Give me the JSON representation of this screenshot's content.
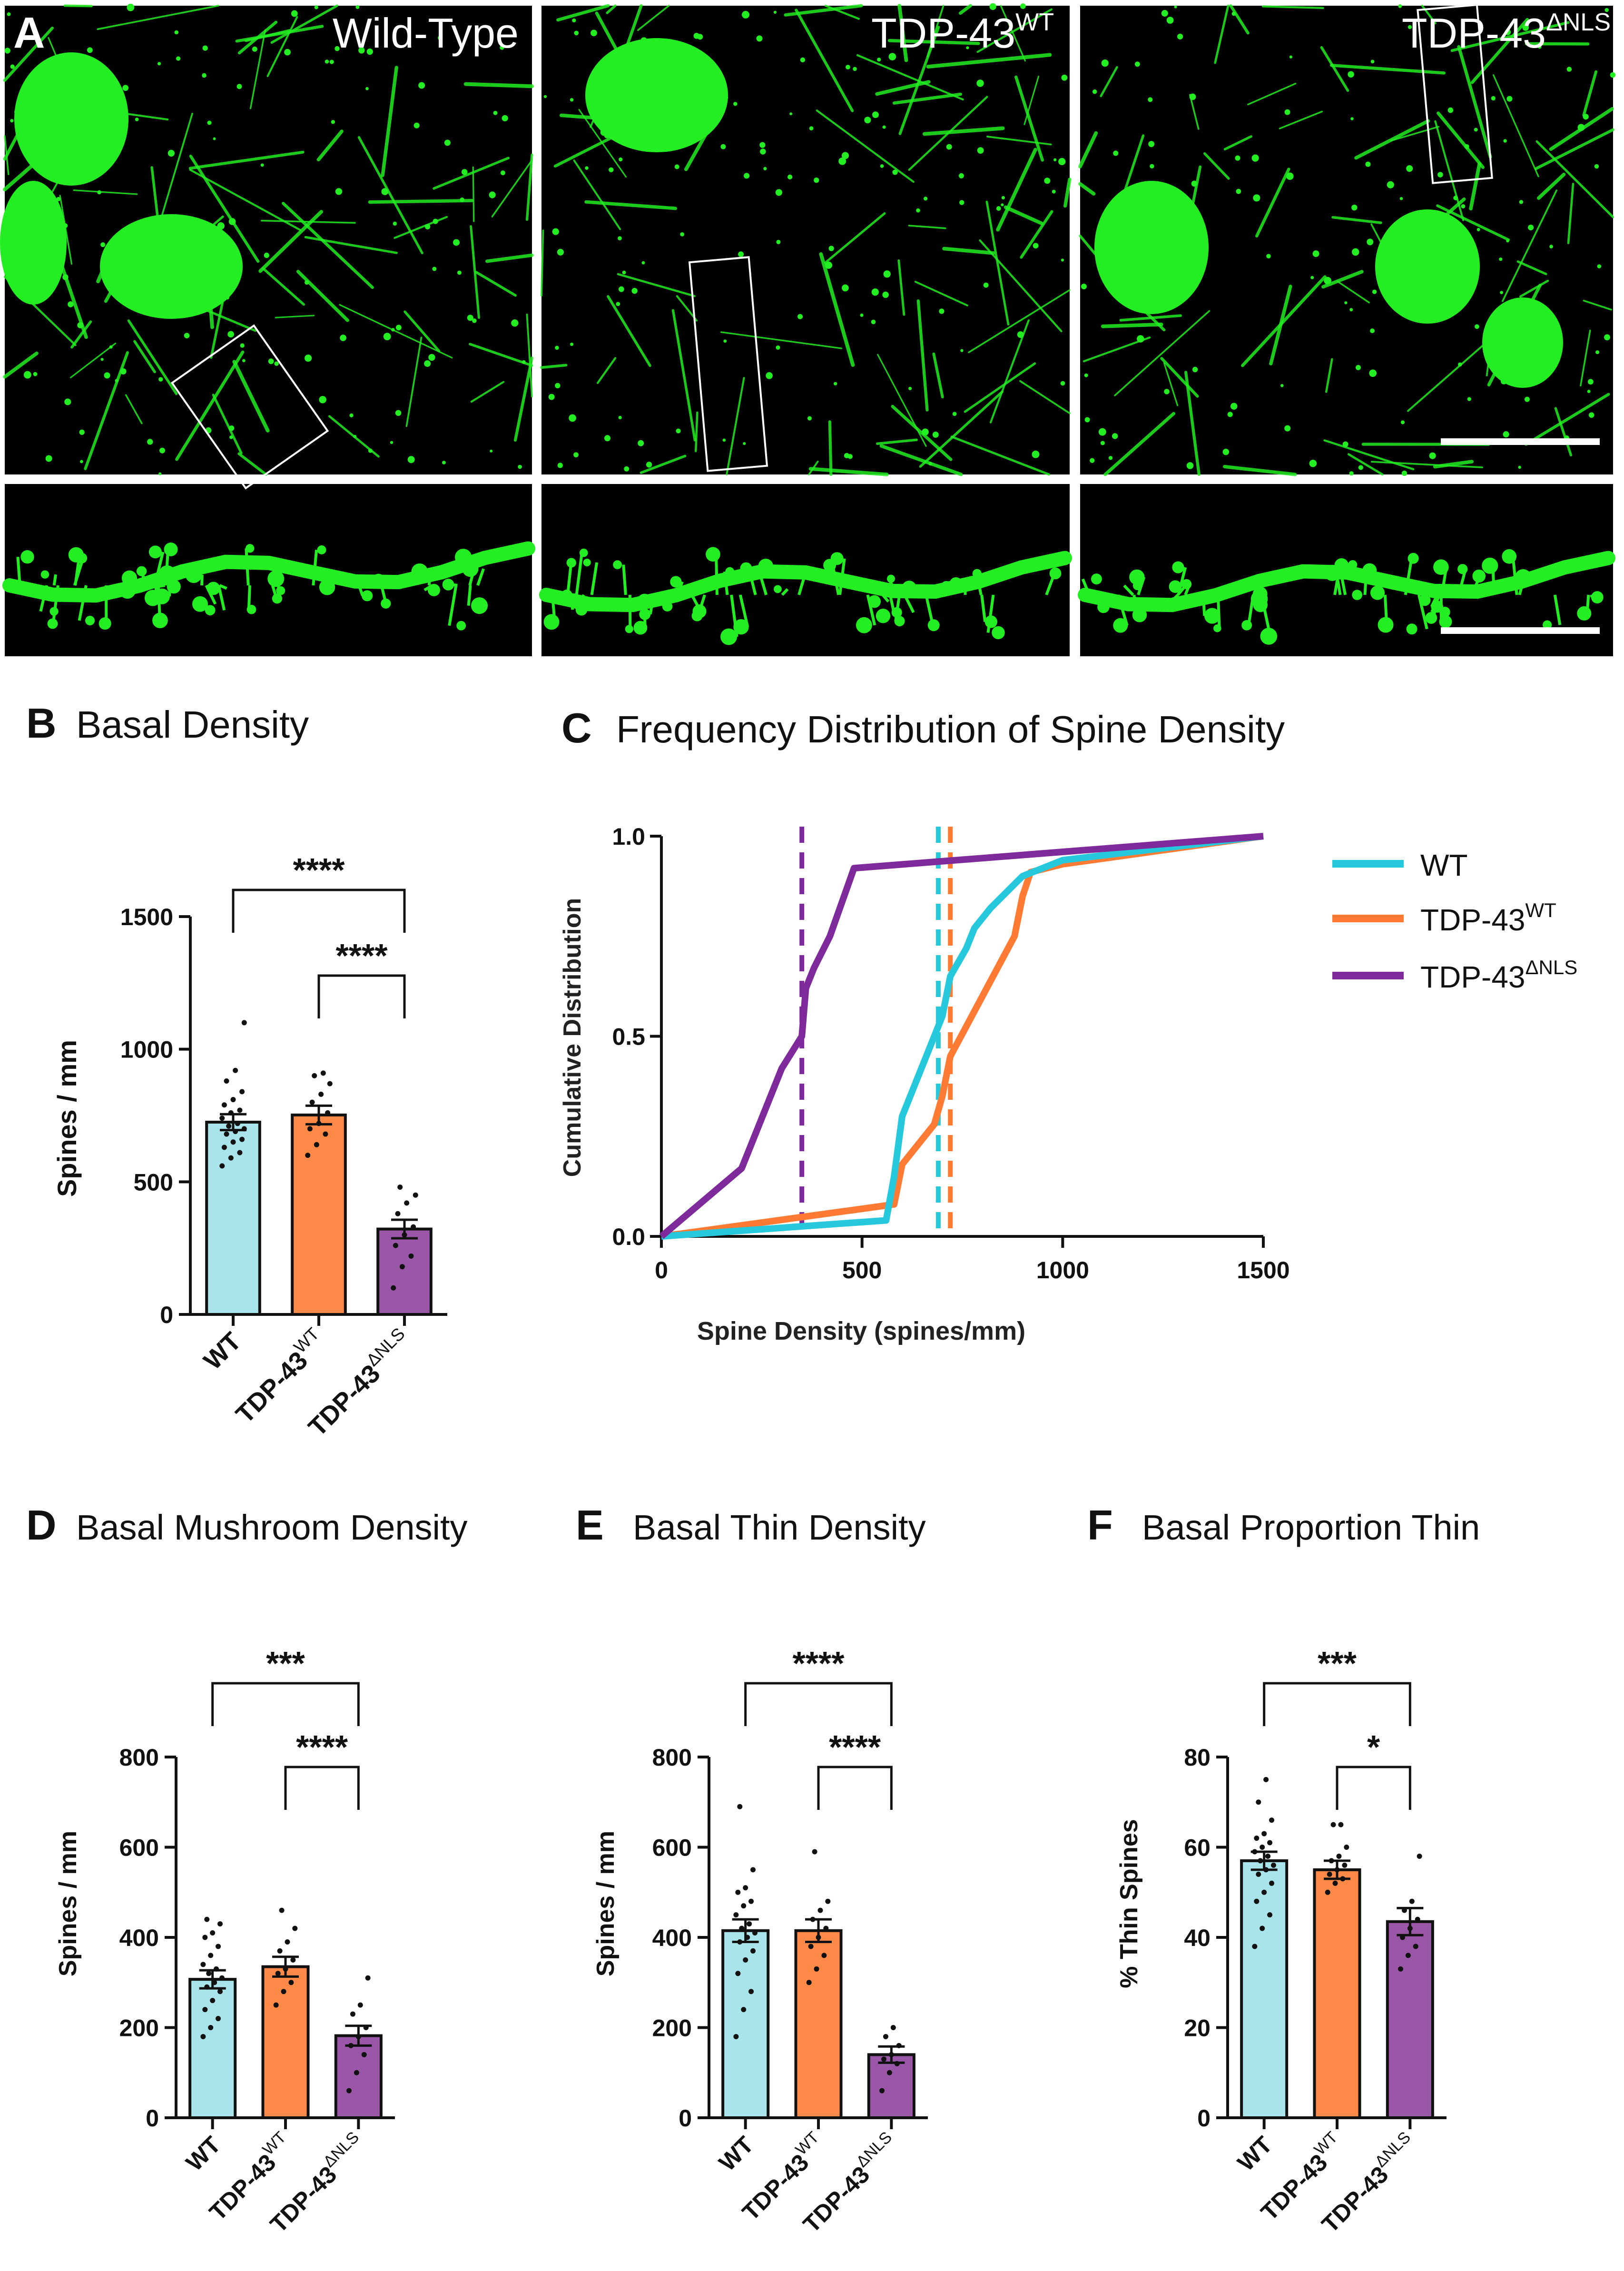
{
  "colors": {
    "wt": "#a8e4ea",
    "tdpwt": "#ff8a47",
    "tdpnls": "#9a57a8",
    "wt_line": "#26c8dc",
    "tdpwt_line": "#ff7a33",
    "tdpnls_line": "#7e2a9a",
    "neuron": "#22ee22"
  },
  "panelA": {
    "letter": "A",
    "labels": [
      {
        "base": "Wild-Type",
        "sup": ""
      },
      {
        "base": "TDP-43",
        "sup": "WT"
      },
      {
        "base": "TDP-43",
        "sup": "ΔNLS"
      }
    ]
  },
  "groups": {
    "wt": "WT",
    "tdp_base": "TDP-43",
    "sup_wt": "WT",
    "sup_nls": "ΔNLS"
  },
  "panelB": {
    "letter": "B",
    "title": "Basal Density",
    "ylabel": "Spines / mm",
    "sig": [
      "****",
      "****"
    ],
    "chart_data": {
      "type": "bar",
      "categories": [
        "WT",
        "TDP-43 WT",
        "TDP-43 ΔNLS"
      ],
      "values": [
        725,
        752,
        322
      ],
      "sem": [
        30,
        35,
        35
      ],
      "ylim": [
        0,
        1500
      ],
      "yticks": [
        "0",
        "500",
        "1000",
        "1500"
      ],
      "points": [
        [
          560,
          590,
          610,
          630,
          650,
          660,
          680,
          690,
          700,
          710,
          720,
          740,
          760,
          770,
          790,
          810,
          840,
          880,
          920,
          1100
        ],
        [
          600,
          640,
          680,
          700,
          720,
          760,
          800,
          830,
          870,
          900,
          910
        ],
        [
          100,
          180,
          220,
          260,
          300,
          330,
          380,
          420,
          450,
          480
        ]
      ]
    }
  },
  "panelC": {
    "letter": "C",
    "title": "Frequency Distribution of Spine Density",
    "xlabel": "Spine Density (spines/mm)",
    "ylabel": "Cumulative Distribution",
    "xticks": [
      "0",
      "500",
      "1000",
      "1500"
    ],
    "yticks": [
      "0.0",
      "0.5",
      "1.0"
    ],
    "chart_data": {
      "type": "line",
      "xlim": [
        0,
        1500
      ],
      "ylim": [
        0,
        1
      ],
      "series": [
        {
          "name": "WT",
          "x": [
            0,
            560,
            580,
            600,
            640,
            660,
            680,
            700,
            720,
            760,
            780,
            820,
            900,
            1000,
            1500
          ],
          "y": [
            0,
            0.04,
            0.15,
            0.3,
            0.4,
            0.45,
            0.5,
            0.55,
            0.65,
            0.72,
            0.77,
            0.82,
            0.9,
            0.94,
            1.0
          ],
          "median": 690
        },
        {
          "name": "TDP-43 WT",
          "x": [
            0,
            580,
            600,
            680,
            700,
            720,
            800,
            880,
            900,
            920,
            1000,
            1500
          ],
          "y": [
            0,
            0.08,
            0.18,
            0.28,
            0.35,
            0.45,
            0.6,
            0.75,
            0.85,
            0.91,
            0.93,
            1.0
          ],
          "median": 720
        },
        {
          "name": "TDP-43 ΔNLS",
          "x": [
            0,
            200,
            300,
            350,
            360,
            380,
            420,
            480,
            1500
          ],
          "y": [
            0,
            0.17,
            0.42,
            0.5,
            0.62,
            0.67,
            0.75,
            0.92,
            1.0
          ],
          "median": 350
        }
      ]
    },
    "legend": [
      "WT",
      "TDP-43",
      "TDP-43"
    ]
  },
  "panelD": {
    "letter": "D",
    "title": "Basal Mushroom Density",
    "ylabel": "Spines / mm",
    "sig": [
      "***",
      "****"
    ],
    "chart_data": {
      "type": "bar",
      "categories": [
        "WT",
        "TDP-43 WT",
        "TDP-43 ΔNLS"
      ],
      "values": [
        307,
        335,
        182
      ],
      "sem": [
        20,
        22,
        22
      ],
      "ylim": [
        0,
        800
      ],
      "yticks": [
        "0",
        "200",
        "400",
        "600",
        "800"
      ],
      "points": [
        [
          180,
          200,
          220,
          240,
          260,
          280,
          290,
          300,
          310,
          320,
          330,
          340,
          360,
          380,
          400,
          410,
          430,
          440
        ],
        [
          250,
          280,
          300,
          320,
          330,
          350,
          370,
          390,
          420,
          460
        ],
        [
          60,
          100,
          140,
          160,
          180,
          200,
          230,
          250,
          310
        ]
      ]
    }
  },
  "panelE": {
    "letter": "E",
    "title": "Basal Thin Density",
    "ylabel": "Spines / mm",
    "sig": [
      "****",
      "****"
    ],
    "chart_data": {
      "type": "bar",
      "categories": [
        "WT",
        "TDP-43 WT",
        "TDP-43 ΔNLS"
      ],
      "values": [
        415,
        415,
        140
      ],
      "sem": [
        25,
        25,
        18
      ],
      "ylim": [
        0,
        800
      ],
      "yticks": [
        "0",
        "200",
        "400",
        "600",
        "800"
      ],
      "points": [
        [
          180,
          240,
          280,
          320,
          350,
          370,
          390,
          400,
          410,
          420,
          430,
          450,
          470,
          480,
          500,
          510,
          550,
          690
        ],
        [
          300,
          330,
          360,
          380,
          400,
          420,
          440,
          460,
          480,
          590
        ],
        [
          60,
          100,
          120,
          130,
          140,
          160,
          180,
          200
        ]
      ]
    }
  },
  "panelF": {
    "letter": "F",
    "title": "Basal Proportion Thin",
    "ylabel": "% Thin Spines",
    "sig": [
      "***",
      "*"
    ],
    "chart_data": {
      "type": "bar",
      "categories": [
        "WT",
        "TDP-43 WT",
        "TDP-43 ΔNLS"
      ],
      "values": [
        57,
        55,
        43.5
      ],
      "sem": [
        2,
        2,
        3
      ],
      "ylim": [
        0,
        80
      ],
      "yticks": [
        "0",
        "20",
        "40",
        "60",
        "80"
      ],
      "points": [
        [
          38,
          42,
          45,
          48,
          50,
          52,
          54,
          55,
          56,
          57,
          58,
          59,
          60,
          61,
          62,
          63,
          66,
          70,
          75
        ],
        [
          50,
          52,
          53,
          54,
          55,
          56,
          57,
          58,
          60,
          65,
          65
        ],
        [
          33,
          36,
          38,
          40,
          42,
          44,
          46,
          48,
          58
        ]
      ]
    }
  }
}
